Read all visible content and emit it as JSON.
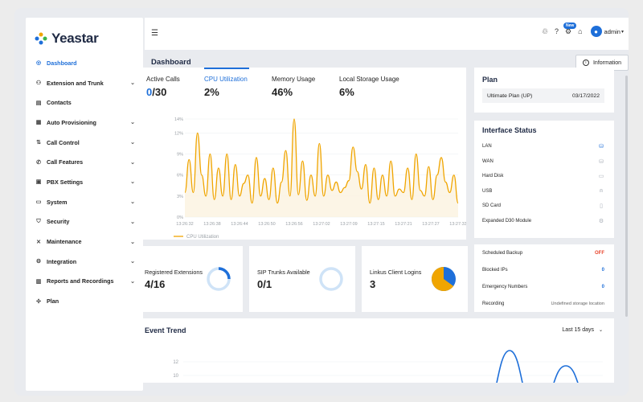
{
  "app": {
    "brand": "Yeastar",
    "brand_color": "#1e6fd9"
  },
  "topbar": {
    "new_badge": "New",
    "user": "admin"
  },
  "sidebar": {
    "items": [
      {
        "label": "Dashboard",
        "icon": "dashboard-icon",
        "active": true,
        "chevron": false
      },
      {
        "label": "Extension and Trunk",
        "icon": "users-icon",
        "chevron": true
      },
      {
        "label": "Contacts",
        "icon": "contacts-icon",
        "chevron": false
      },
      {
        "label": "Auto Provisioning",
        "icon": "provision-icon",
        "chevron": true
      },
      {
        "label": "Call Control",
        "icon": "call-control-icon",
        "chevron": true
      },
      {
        "label": "Call Features",
        "icon": "phone-icon",
        "chevron": true
      },
      {
        "label": "PBX Settings",
        "icon": "settings-icon",
        "chevron": true
      },
      {
        "label": "System",
        "icon": "system-icon",
        "chevron": true
      },
      {
        "label": "Security",
        "icon": "shield-icon",
        "chevron": true
      },
      {
        "label": "Maintenance",
        "icon": "tools-icon",
        "chevron": true
      },
      {
        "label": "Integration",
        "icon": "integration-icon",
        "chevron": true
      },
      {
        "label": "Reports and Recordings",
        "icon": "reports-icon",
        "chevron": true
      },
      {
        "label": "Plan",
        "icon": "plan-icon",
        "chevron": false
      }
    ]
  },
  "page": {
    "title": "Dashboard",
    "info_button": "Information"
  },
  "metrics": {
    "active_calls": {
      "label": "Active Calls",
      "value_current": "0",
      "value_total": "/30"
    },
    "cpu": {
      "label": "CPU Utilization",
      "value": "2%"
    },
    "memory": {
      "label": "Memory Usage",
      "value": "46%"
    },
    "storage": {
      "label": "Local Storage Usage",
      "value": "6%"
    }
  },
  "chart_data": {
    "type": "line",
    "title": "",
    "legend": [
      "CPU Utilization"
    ],
    "ylabel": "",
    "y_ticks": [
      "14%",
      "12%",
      "9%",
      "6%",
      "3%",
      "0%"
    ],
    "x_ticks": [
      "13:26:32",
      "13:26:38",
      "13:26:44",
      "13:26:50",
      "13:26:56",
      "13:27:02",
      "13:27:09",
      "13:27:15",
      "13:27:21",
      "13:27:27",
      "13:27:33"
    ],
    "ylim": [
      0,
      14
    ],
    "series": [
      {
        "name": "CPU Utilization",
        "color": "#f0a500",
        "values": [
          3.5,
          8.2,
          3.5,
          12.0,
          6.0,
          3.0,
          9.0,
          2.5,
          7.0,
          3.0,
          9.0,
          2.5,
          7.5,
          3.0,
          4.8,
          6.0,
          2.0,
          8.5,
          3.0,
          5.5,
          2.5,
          7.0,
          2.0,
          5.0,
          9.5,
          3.0,
          14.0,
          3.2,
          8.0,
          2.4,
          6.0,
          3.0,
          10.5,
          3.0,
          6.0,
          3.8,
          5.0,
          3.5,
          4.2,
          5.2,
          10.0,
          6.5,
          4.0,
          7.5,
          2.0,
          7.0,
          2.5,
          6.0,
          3.0,
          8.0,
          3.0,
          4.0,
          3.5,
          7.0,
          2.5,
          9.0,
          3.8,
          3.0,
          7.2,
          2.5,
          6.0,
          8.5,
          5.0,
          3.5,
          6.0,
          2.0
        ]
      }
    ]
  },
  "plan": {
    "title": "Plan",
    "name": "Ultimate Plan (UP)",
    "date": "03/17/2022"
  },
  "interface_status": {
    "title": "Interface Status",
    "items": [
      {
        "label": "LAN",
        "icon": "lan-icon",
        "color": "#1e6fd9"
      },
      {
        "label": "WAN",
        "icon": "wan-icon",
        "color": "#aab0b8"
      },
      {
        "label": "Hard Disk",
        "icon": "hard-disk-icon",
        "color": "#aab0b8"
      },
      {
        "label": "USB",
        "icon": "usb-icon",
        "color": "#aab0b8"
      },
      {
        "label": "SD Card",
        "icon": "sd-card-icon",
        "color": "#aab0b8"
      },
      {
        "label": "Expanded D30 Module",
        "icon": "module-icon",
        "color": "#aab0b8"
      }
    ]
  },
  "status_list": {
    "items": [
      {
        "label": "Scheduled Backup",
        "value": "OFF",
        "color": "#e8452c"
      },
      {
        "label": "Blocked IPs",
        "value": "0",
        "color": "#1e6fd9"
      },
      {
        "label": "Emergency Numbers",
        "value": "0",
        "color": "#1e6fd9"
      },
      {
        "label": "Recording",
        "value": "Undefined storage location",
        "color": "#666666"
      }
    ]
  },
  "kpi_cards": [
    {
      "label": "Registered Extensions",
      "value": "4/16",
      "fraction": 0.25,
      "chart": "ring"
    },
    {
      "label": "SIP Trunks Available",
      "value": "0/1",
      "fraction": 0,
      "chart": "ring"
    },
    {
      "label": "Linkus Client Logins",
      "value": "3",
      "fraction": 0.65,
      "chart": "pie"
    }
  ],
  "event_trend": {
    "title": "Event Trend",
    "range": "Last 15 days",
    "y_ticks": [
      "12",
      "10"
    ]
  }
}
